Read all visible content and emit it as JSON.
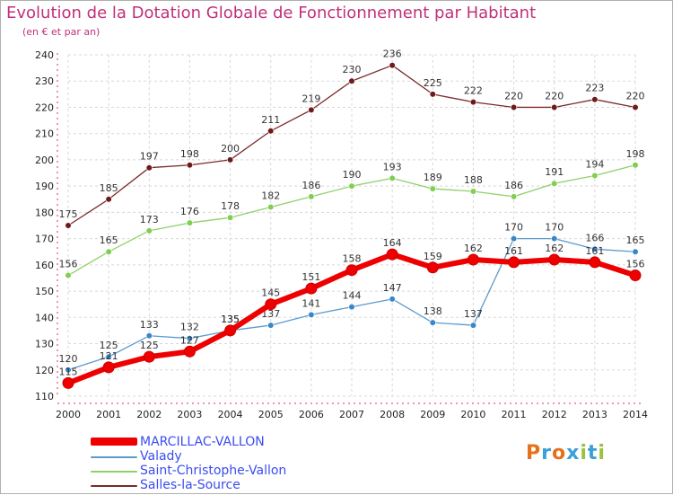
{
  "header": {
    "title": "Evolution de la Dotation Globale de Fonctionnement par Habitant",
    "subtitle": "(en € et par an)"
  },
  "logo": {
    "text": "Proxiti",
    "colors": [
      "#e8701a",
      "#3aa0d8",
      "#e8701a",
      "#3aa0d8",
      "#9bc23a",
      "#3aa0d8",
      "#9bc23a"
    ]
  },
  "chart_data": {
    "type": "line",
    "title": "Evolution de la Dotation Globale de Fonctionnement par Habitant",
    "subtitle": "(en € et par an)",
    "xlabel": "",
    "ylabel": "",
    "x": [
      2000,
      2001,
      2002,
      2003,
      2004,
      2005,
      2006,
      2007,
      2008,
      2009,
      2010,
      2011,
      2012,
      2013,
      2014
    ],
    "ylim": [
      110,
      240
    ],
    "yticks": [
      110,
      120,
      130,
      140,
      150,
      160,
      170,
      180,
      190,
      200,
      210,
      220,
      230,
      240
    ],
    "grid": true,
    "legend_position": "bottom-left",
    "series": [
      {
        "name": "Salles-la-Source",
        "color": "#7a2a2a",
        "marker": "#6e1a1a",
        "width": 1.3,
        "values": [
          175,
          185,
          197,
          198,
          200,
          211,
          219,
          230,
          236,
          225,
          222,
          220,
          220,
          223,
          220
        ]
      },
      {
        "name": "Saint-Christophe-Vallon",
        "color": "#8ed06a",
        "marker": "#7fcf50",
        "width": 1.3,
        "values": [
          156,
          165,
          173,
          176,
          178,
          182,
          186,
          190,
          193,
          189,
          188,
          186,
          191,
          194,
          198
        ]
      },
      {
        "name": "Valady",
        "color": "#5b9bd0",
        "marker": "#3a87c8",
        "width": 1.3,
        "values": [
          120,
          125,
          133,
          132,
          135,
          137,
          141,
          144,
          147,
          138,
          137,
          170,
          170,
          166,
          165
        ]
      },
      {
        "name": "MARCILLAC-VALLON",
        "color": "#ee0000",
        "marker": "#ee0000",
        "width": 6,
        "values": [
          115,
          121,
          125,
          127,
          135,
          145,
          151,
          158,
          164,
          159,
          162,
          161,
          162,
          161,
          156
        ]
      }
    ],
    "legend_order": [
      "MARCILLAC-VALLON",
      "Valady",
      "Saint-Christophe-Vallon",
      "Salles-la-Source"
    ]
  }
}
